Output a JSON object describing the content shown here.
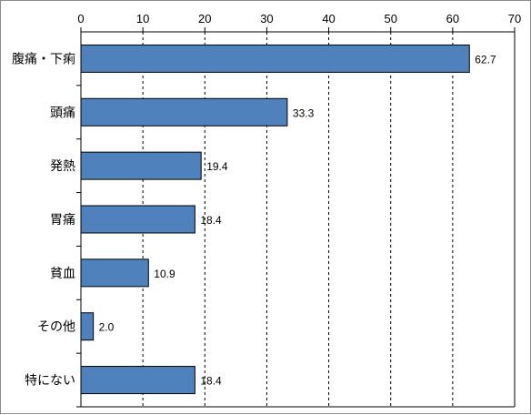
{
  "chart_data": {
    "type": "bar",
    "orientation": "horizontal",
    "categories": [
      "腹痛・下痢",
      "頭痛",
      "発熱",
      "胃痛",
      "貧血",
      "その他",
      "特にない"
    ],
    "values": [
      62.7,
      33.3,
      19.4,
      18.4,
      10.9,
      2.0,
      18.4
    ],
    "value_labels": [
      "62.7",
      "33.3",
      "19.4",
      "18.4",
      "10.9",
      "2.0",
      "18.4"
    ],
    "xlim": [
      0,
      70
    ],
    "x_ticks": [
      0,
      10,
      20,
      30,
      40,
      50,
      60,
      70
    ],
    "x_axis_position": "top",
    "grid": "vertical dashed",
    "bar_color": "#4f81bd",
    "title": "",
    "xlabel": "",
    "ylabel": ""
  }
}
